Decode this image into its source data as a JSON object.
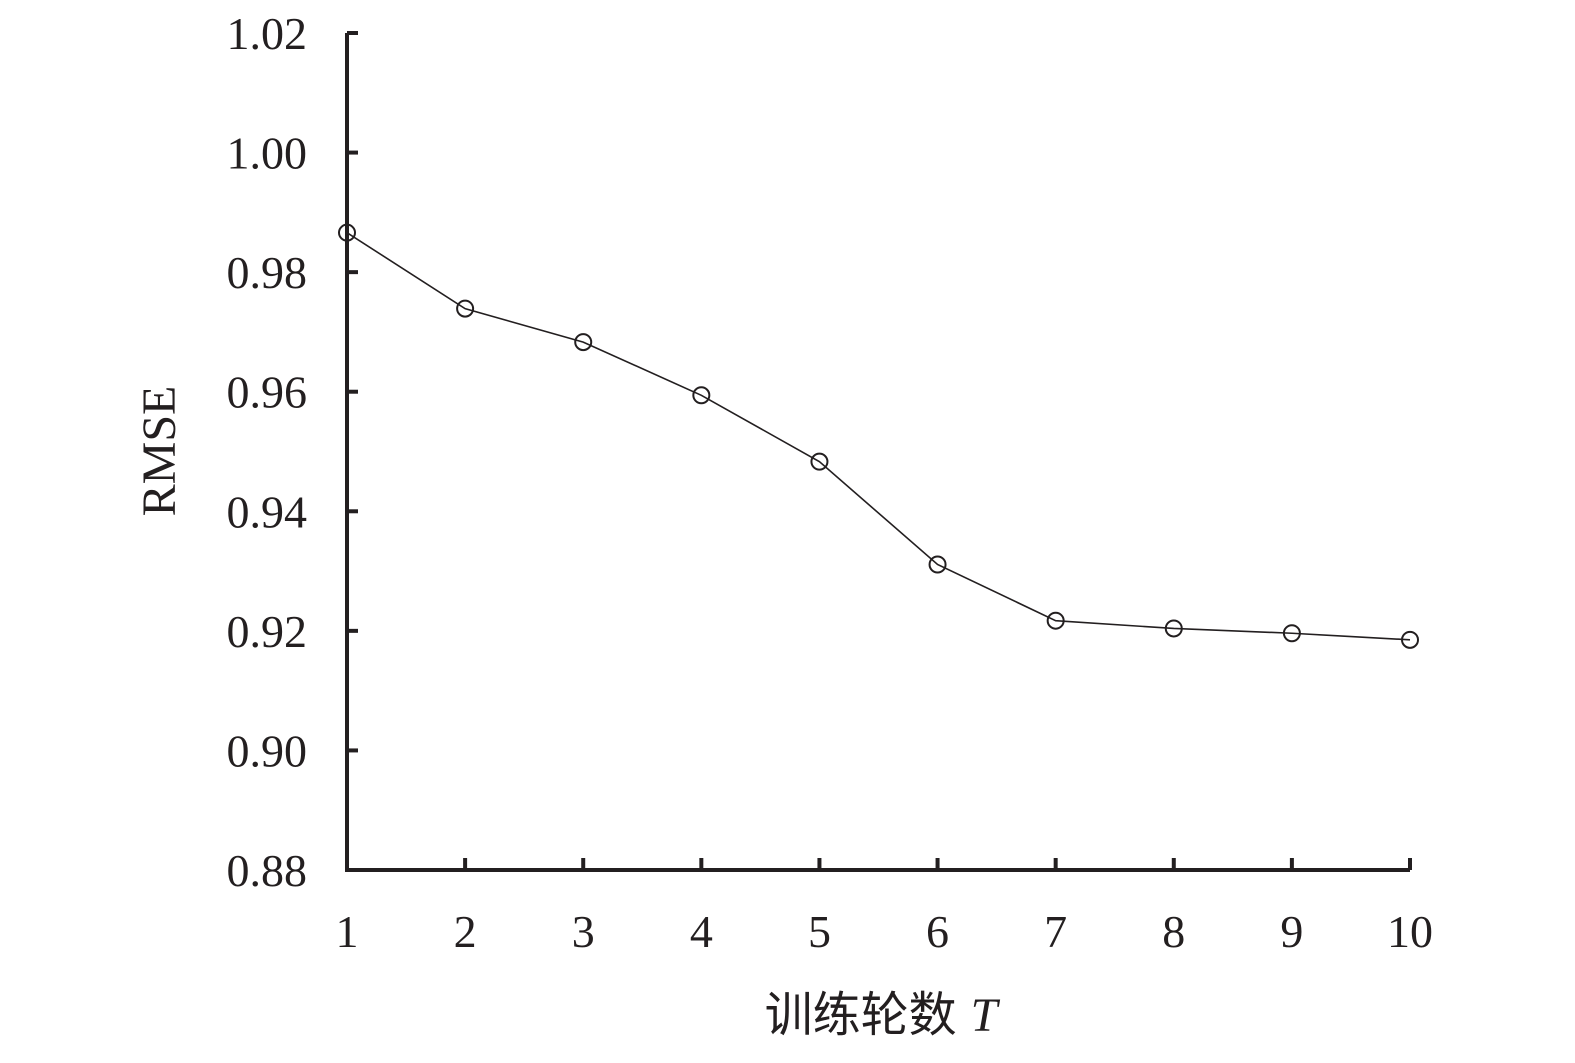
{
  "chart_data": {
    "type": "line",
    "title": "",
    "xlabel": "训练轮数",
    "xlabel_var": "T",
    "ylabel": "RMSE",
    "x": [
      1,
      2,
      3,
      4,
      5,
      6,
      7,
      8,
      9,
      10
    ],
    "x_tick_labels": [
      "1",
      "2",
      "3",
      "4",
      "5",
      "6",
      "7",
      "8",
      "9",
      "10"
    ],
    "y_ticks": [
      0.88,
      0.9,
      0.92,
      0.94,
      0.96,
      0.98,
      1.0,
      1.02
    ],
    "y_tick_labels": [
      "0.88",
      "0.90",
      "0.92",
      "0.94",
      "0.96",
      "0.98",
      "1.00",
      "1.02"
    ],
    "xlim": [
      1,
      10
    ],
    "ylim": [
      0.88,
      1.02
    ],
    "grid": false,
    "legend": "none",
    "marker": "open-circle",
    "series": [
      {
        "values": [
          0.9866,
          0.9739,
          0.9683,
          0.9594,
          0.9483,
          0.9311,
          0.9217,
          0.9204,
          0.9196,
          0.9185
        ]
      }
    ],
    "colors": {
      "ink": "#231f20",
      "background": "#ffffff"
    }
  }
}
